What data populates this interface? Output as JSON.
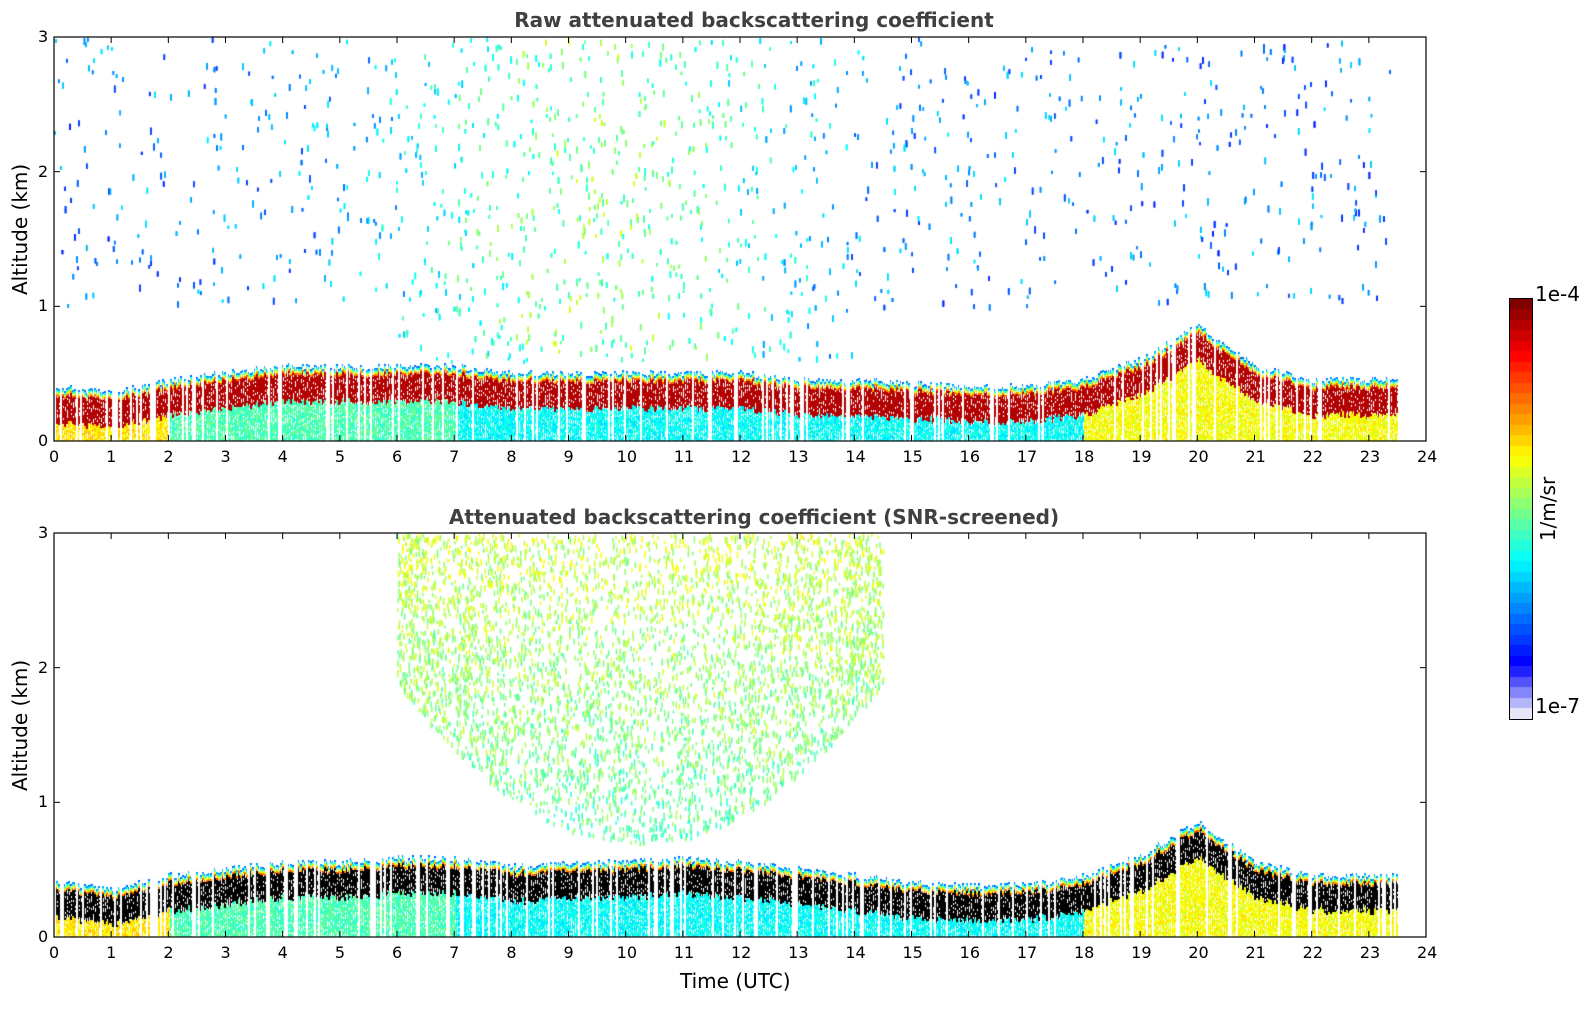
{
  "chart_data": [
    {
      "type": "heatmap",
      "title": "Raw attenuated backscattering coefficient",
      "xlabel": "",
      "ylabel": "Altitude (km)",
      "xlim": [
        0,
        24
      ],
      "ylim": [
        0,
        3
      ],
      "xticks": [
        "0",
        "1",
        "2",
        "3",
        "4",
        "5",
        "6",
        "7",
        "8",
        "9",
        "10",
        "11",
        "12",
        "13",
        "14",
        "15",
        "16",
        "17",
        "18",
        "19",
        "20",
        "21",
        "22",
        "23",
        "24"
      ],
      "yticks": [
        "0",
        "1",
        "2",
        "3"
      ],
      "data_end_hour": 23.5,
      "boundary_layer_top_km": [
        [
          0,
          0.4
        ],
        [
          1,
          0.35
        ],
        [
          2,
          0.45
        ],
        [
          3,
          0.5
        ],
        [
          4,
          0.55
        ],
        [
          5,
          0.55
        ],
        [
          6,
          0.55
        ],
        [
          7,
          0.55
        ],
        [
          8,
          0.5
        ],
        [
          9,
          0.5
        ],
        [
          10,
          0.5
        ],
        [
          11,
          0.5
        ],
        [
          12,
          0.5
        ],
        [
          13,
          0.45
        ],
        [
          14,
          0.45
        ],
        [
          15,
          0.42
        ],
        [
          16,
          0.4
        ],
        [
          17,
          0.4
        ],
        [
          18,
          0.45
        ],
        [
          19,
          0.6
        ],
        [
          20,
          0.85
        ],
        [
          21,
          0.55
        ],
        [
          22,
          0.45
        ],
        [
          23,
          0.45
        ],
        [
          23.5,
          0.45
        ]
      ],
      "noise_region_km": [
        1.0,
        3.0
      ],
      "screened": false
    },
    {
      "type": "heatmap",
      "title": "Attenuated backscattering coefficient (SNR-screened)",
      "xlabel": "Time (UTC)",
      "ylabel": "Altitude (km)",
      "xlim": [
        0,
        24
      ],
      "ylim": [
        0,
        3
      ],
      "xticks": [
        "0",
        "1",
        "2",
        "3",
        "4",
        "5",
        "6",
        "7",
        "8",
        "9",
        "10",
        "11",
        "12",
        "13",
        "14",
        "15",
        "16",
        "17",
        "18",
        "19",
        "20",
        "21",
        "22",
        "23",
        "24"
      ],
      "yticks": [
        "0",
        "1",
        "2",
        "3"
      ],
      "data_end_hour": 23.5,
      "boundary_layer_top_km": [
        [
          0,
          0.4
        ],
        [
          1,
          0.35
        ],
        [
          2,
          0.45
        ],
        [
          3,
          0.5
        ],
        [
          4,
          0.55
        ],
        [
          5,
          0.55
        ],
        [
          6,
          0.58
        ],
        [
          7,
          0.58
        ],
        [
          8,
          0.52
        ],
        [
          9,
          0.55
        ],
        [
          10,
          0.55
        ],
        [
          11,
          0.58
        ],
        [
          12,
          0.55
        ],
        [
          13,
          0.5
        ],
        [
          14,
          0.45
        ],
        [
          15,
          0.4
        ],
        [
          16,
          0.38
        ],
        [
          17,
          0.38
        ],
        [
          18,
          0.45
        ],
        [
          19,
          0.6
        ],
        [
          20,
          0.85
        ],
        [
          21,
          0.55
        ],
        [
          22,
          0.45
        ],
        [
          23,
          0.45
        ],
        [
          23.5,
          0.45
        ]
      ],
      "aerosol_dome_hours": [
        6.0,
        14.5
      ],
      "screened": true
    }
  ],
  "colorbar": {
    "max_label": "1e-4",
    "min_label": "1e-7",
    "unit": "1/m/sr",
    "colormap": "jet",
    "low_color": "#e6e6f8",
    "high_color": "#800000"
  }
}
